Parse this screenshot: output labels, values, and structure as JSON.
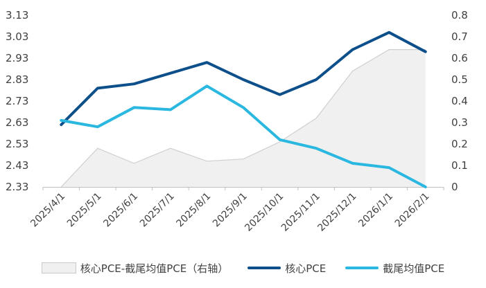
{
  "chart_data": {
    "type": "line",
    "categories": [
      "2025/4/1",
      "2025/5/1",
      "2025/6/1",
      "2025/7/1",
      "2025/8/1",
      "2025/9/1",
      "2025/10/1",
      "2025/11/1",
      "2025/12/1",
      "2026/1/1",
      "2026/2/1"
    ],
    "left_axis": {
      "ylim": [
        2.33,
        3.13
      ],
      "ticks": [
        "2.33",
        "2.43",
        "2.53",
        "2.63",
        "2.73",
        "2.83",
        "2.93",
        "3.03",
        "3.13"
      ]
    },
    "right_axis": {
      "ylim": [
        0,
        0.8
      ],
      "ticks": [
        "0",
        "0.1",
        "0.2",
        "0.3",
        "0.4",
        "0.5",
        "0.6",
        "0.7",
        "0.8"
      ]
    },
    "series": [
      {
        "name": "核心PCE-截尾均值PCE（右轴）",
        "type": "area",
        "axis": "right",
        "color": "#f0f0f0",
        "values": [
          0.0,
          0.18,
          0.11,
          0.18,
          0.12,
          0.13,
          0.21,
          0.32,
          0.54,
          0.64,
          0.64
        ]
      },
      {
        "name": "核心PCE",
        "type": "line",
        "axis": "left",
        "color": "#0d4f8b",
        "values": [
          2.62,
          2.79,
          2.81,
          2.86,
          2.91,
          2.83,
          2.76,
          2.83,
          2.97,
          3.05,
          2.96
        ]
      },
      {
        "name": "截尾均值PCE",
        "type": "line",
        "axis": "left",
        "color": "#2ab7e0",
        "values": [
          2.64,
          2.61,
          2.7,
          2.69,
          2.8,
          2.7,
          2.55,
          2.51,
          2.44,
          2.42,
          2.33
        ]
      }
    ],
    "title": "",
    "grid": false,
    "legend": "bottom"
  }
}
